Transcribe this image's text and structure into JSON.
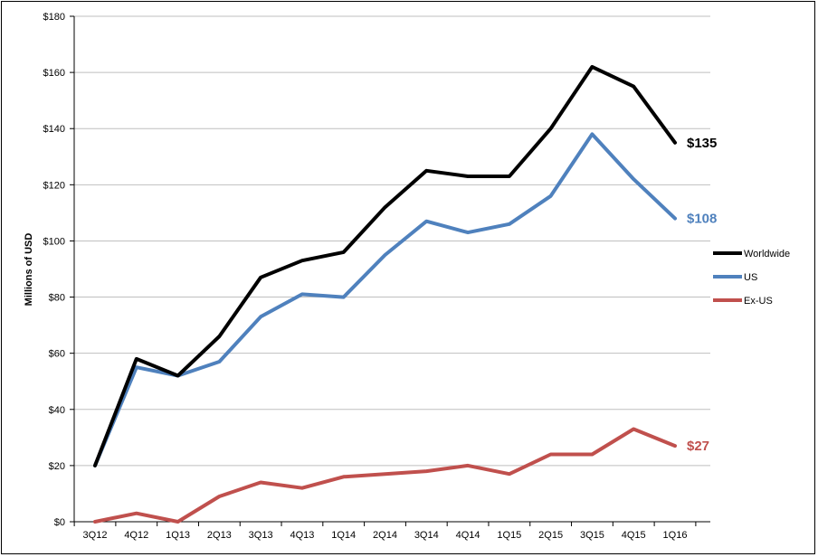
{
  "chart_data": {
    "type": "line",
    "title": "",
    "xlabel": "",
    "ylabel": "Millions of USD",
    "ylim": [
      0,
      180
    ],
    "ytick_step": 20,
    "ytick_labels": [
      "$0",
      "$20",
      "$40",
      "$60",
      "$80",
      "$100",
      "$120",
      "$140",
      "$160",
      "$180"
    ],
    "categories": [
      "3Q12",
      "4Q12",
      "1Q13",
      "2Q13",
      "3Q13",
      "4Q13",
      "1Q14",
      "2Q14",
      "3Q14",
      "4Q14",
      "1Q15",
      "2Q15",
      "3Q15",
      "4Q15",
      "1Q16"
    ],
    "grid": {
      "horizontal": true,
      "vertical": false
    },
    "legend_position": "right",
    "series": [
      {
        "name": "Worldwide",
        "color": "#000000",
        "values": [
          20,
          58,
          52,
          66,
          87,
          93,
          96,
          112,
          125,
          123,
          123,
          140,
          162,
          155,
          135
        ],
        "end_label": "$135"
      },
      {
        "name": "US",
        "color": "#4f81bd",
        "values": [
          20,
          55,
          52,
          57,
          73,
          81,
          80,
          95,
          107,
          103,
          106,
          116,
          138,
          122,
          108
        ],
        "end_label": "$108"
      },
      {
        "name": "Ex-US",
        "color": "#c0504d",
        "values": [
          0,
          3,
          0,
          9,
          14,
          12,
          16,
          17,
          18,
          20,
          17,
          24,
          24,
          33,
          27
        ],
        "end_label": "$27"
      }
    ]
  }
}
